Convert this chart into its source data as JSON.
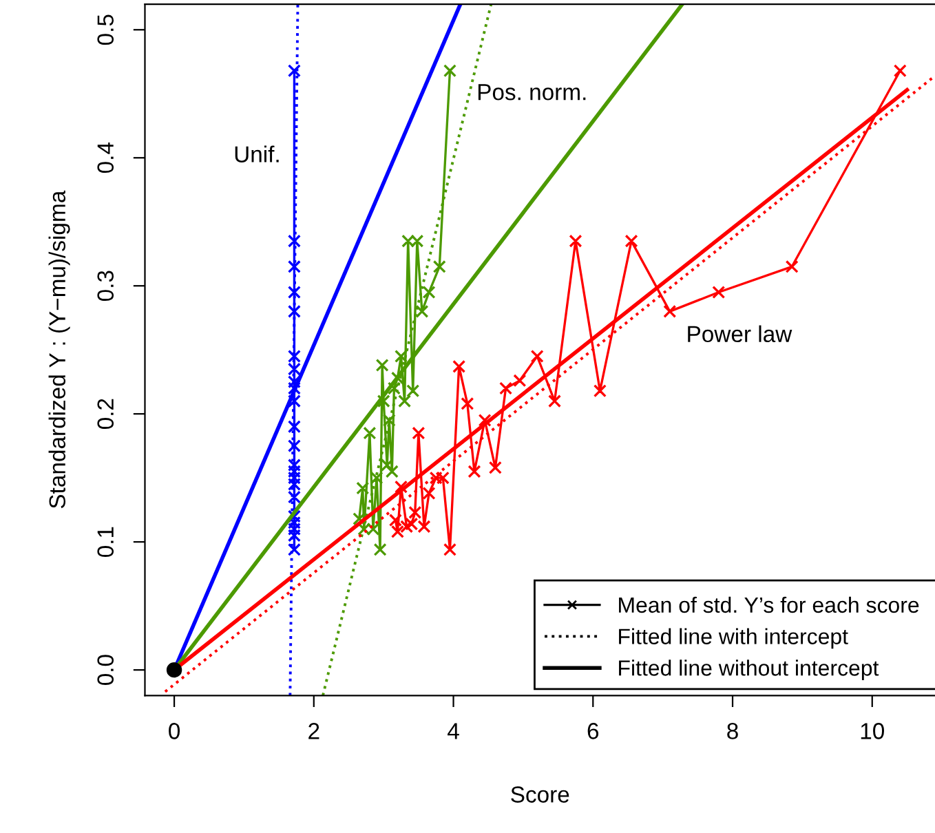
{
  "chart_data": {
    "type": "line",
    "xlabel": "Score",
    "ylabel": "Standardized Y : (Y−mu)/sigma",
    "xlim": [
      -0.42,
      10.9
    ],
    "ylim": [
      -0.02,
      0.52
    ],
    "xticks": [
      0,
      2,
      4,
      6,
      8,
      10
    ],
    "yticks": [
      {
        "value": 0,
        "label": "0.0"
      },
      0.1,
      0.2,
      0.3,
      0.4,
      0.5
    ],
    "grid": false,
    "annotations": [
      "Mean of std. Y’s for each score",
      "Fitted line with intercept",
      "Fitted line without intercept",
      "Unif.",
      "Pos. norm.",
      "Power law"
    ],
    "series": [
      {
        "color": "#0000ff",
        "marker": "star",
        "line_style": "solid",
        "x": [
          1.72,
          1.72,
          1.72,
          1.72,
          1.72,
          1.72,
          1.72,
          1.72,
          1.72,
          1.72,
          1.72,
          1.72,
          1.72,
          1.72,
          1.72,
          1.72,
          1.72,
          1.72,
          1.72,
          1.72,
          1.72,
          1.72
        ],
        "values": [
          0.094,
          0.105,
          0.11,
          0.115,
          0.12,
          0.135,
          0.145,
          0.15,
          0.155,
          0.16,
          0.175,
          0.19,
          0.21,
          0.22,
          0.225,
          0.235,
          0.245,
          0.28,
          0.295,
          0.315,
          0.335,
          0.468
        ]
      },
      {
        "color": "#0000ff",
        "marker": "none",
        "line_style": "dotted",
        "x": [
          1.66,
          1.77
        ],
        "values": [
          -0.02,
          0.52
        ]
      },
      {
        "color": "#0000ff",
        "marker": "none",
        "line_style": "solid",
        "x": [
          0,
          4.1
        ],
        "values": [
          0,
          0.52
        ]
      },
      {
        "color": "#4c9a00",
        "marker": "star",
        "line_style": "solid",
        "x": [
          2.65,
          2.7,
          2.72,
          2.8,
          2.85,
          2.9,
          2.95,
          2.98,
          3.0,
          3.05,
          3.08,
          3.12,
          3.15,
          3.2,
          3.25,
          3.3,
          3.35,
          3.42,
          3.48,
          3.55,
          3.65,
          3.8,
          3.95
        ],
        "values": [
          0.118,
          0.142,
          0.11,
          0.185,
          0.11,
          0.15,
          0.094,
          0.238,
          0.21,
          0.16,
          0.195,
          0.155,
          0.22,
          0.228,
          0.245,
          0.21,
          0.335,
          0.218,
          0.335,
          0.28,
          0.295,
          0.315,
          0.468
        ]
      },
      {
        "color": "#4c9a00",
        "marker": "none",
        "line_style": "dotted",
        "x": [
          2.13,
          4.54
        ],
        "values": [
          -0.02,
          0.52
        ]
      },
      {
        "color": "#4c9a00",
        "marker": "none",
        "line_style": "solid",
        "x": [
          0,
          7.28
        ],
        "values": [
          0,
          0.52
        ]
      },
      {
        "color": "#ff0000",
        "marker": "star",
        "line_style": "solid",
        "x": [
          3.17,
          3.2,
          3.25,
          3.33,
          3.4,
          3.45,
          3.5,
          3.58,
          3.65,
          3.75,
          3.85,
          3.95,
          4.08,
          4.2,
          4.3,
          4.45,
          4.6,
          4.75,
          4.95,
          5.2,
          5.45,
          5.75,
          6.1,
          6.55,
          7.1,
          7.8,
          8.85,
          10.4
        ],
        "values": [
          0.117,
          0.108,
          0.143,
          0.112,
          0.114,
          0.123,
          0.185,
          0.112,
          0.138,
          0.15,
          0.15,
          0.094,
          0.237,
          0.208,
          0.155,
          0.195,
          0.158,
          0.22,
          0.226,
          0.245,
          0.21,
          0.335,
          0.218,
          0.335,
          0.28,
          0.295,
          0.315,
          0.468
        ]
      },
      {
        "color": "#ff0000",
        "marker": "none",
        "line_style": "dotted",
        "x": [
          -0.13,
          10.9
        ],
        "values": [
          -0.017,
          0.464
        ]
      },
      {
        "color": "#ff0000",
        "marker": "none",
        "line_style": "solid",
        "x": [
          0,
          10.5
        ],
        "values": [
          0,
          0.453
        ]
      },
      {
        "type": "scatter",
        "color": "#000000",
        "marker": "circle",
        "x": [
          0
        ],
        "values": [
          0
        ]
      }
    ]
  }
}
